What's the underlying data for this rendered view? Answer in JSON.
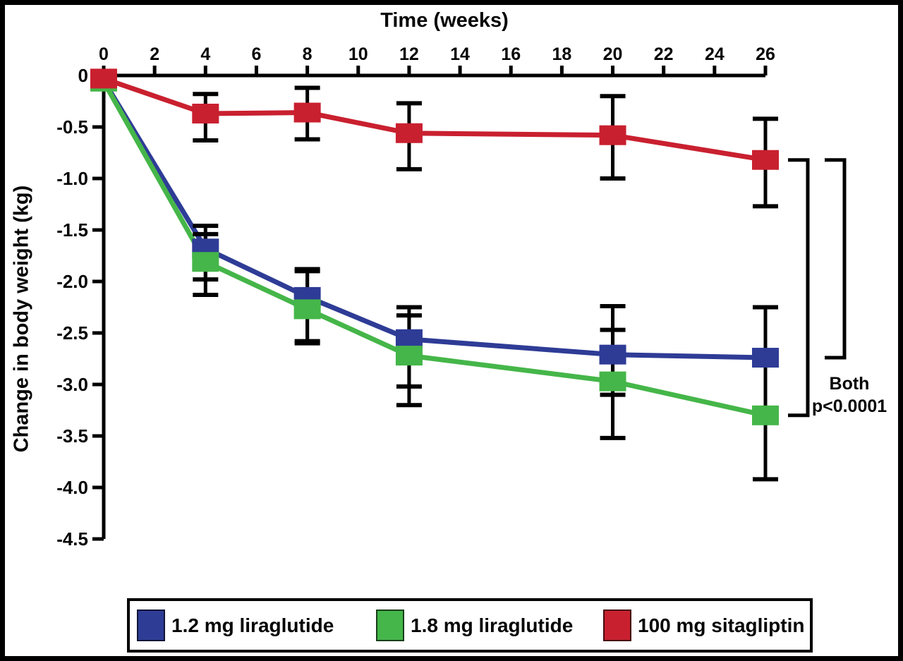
{
  "figure": {
    "xaxis_title": "Time (weeks)",
    "yaxis_title": "Change in body weight (kg)",
    "annotation_line1": "Both",
    "annotation_line2": "p<0.0001"
  },
  "legend": {
    "items": [
      {
        "label": "1.2 mg liraglutide",
        "color": "#2e3c96"
      },
      {
        "label": "1.8 mg liraglutide",
        "color": "#45b649"
      },
      {
        "label": "100 mg sitagliptin",
        "color": "#c9202f"
      }
    ]
  },
  "chart_data": {
    "type": "line",
    "title": "",
    "xlabel": "Time (weeks)",
    "ylabel": "Change in body weight (kg)",
    "xlim": [
      0,
      26
    ],
    "ylim": [
      -4.5,
      0
    ],
    "grid": false,
    "legend_position": "bottom",
    "x_ticks": [
      0,
      2,
      4,
      6,
      8,
      10,
      12,
      14,
      16,
      18,
      20,
      22,
      24,
      26
    ],
    "y_ticks": [
      0,
      -0.5,
      -1.0,
      -1.5,
      -2.0,
      -2.5,
      -3.0,
      -3.5,
      -4.0,
      -4.5
    ],
    "y_tick_labels": [
      "0",
      "-0.5",
      "-1.0",
      "-1.5",
      "-2.0",
      "-2.5",
      "-3.0",
      "-3.5",
      "-4.0",
      "-4.5"
    ],
    "x": [
      0,
      4,
      8,
      12,
      20,
      26
    ],
    "series": [
      {
        "name": "1.2 mg liraglutide",
        "color": "#2e3c96",
        "marker": "square",
        "values": [
          -0.05,
          -1.68,
          -2.15,
          -2.56,
          -2.71,
          -2.74
        ],
        "err_hi": [
          null,
          -1.46,
          -1.88,
          -2.25,
          -2.24,
          -2.25
        ],
        "err_lo": [
          null,
          -1.98,
          -2.58,
          -3.02,
          -3.1,
          -3.3
        ]
      },
      {
        "name": "1.8 mg liraglutide",
        "color": "#45b649",
        "marker": "square",
        "values": [
          -0.06,
          -1.81,
          -2.27,
          -2.72,
          -2.97,
          -3.3
        ],
        "err_hi": [
          null,
          -1.54,
          -1.9,
          -2.33,
          -2.47,
          -2.74
        ],
        "err_lo": [
          null,
          -2.13,
          -2.6,
          -3.2,
          -3.52,
          -3.92
        ]
      },
      {
        "name": "100 mg sitagliptin",
        "color": "#c9202f",
        "marker": "square",
        "values": [
          -0.03,
          -0.37,
          -0.36,
          -0.56,
          -0.58,
          -0.82
        ],
        "err_hi": [
          null,
          -0.18,
          -0.12,
          -0.27,
          -0.2,
          -0.42
        ],
        "err_lo": [
          null,
          -0.63,
          -0.62,
          -0.91,
          -1.0,
          -1.27
        ]
      }
    ],
    "annotation": {
      "text": [
        "Both",
        "p<0.0001"
      ],
      "brackets": [
        {
          "compares": [
            "100 mg sitagliptin",
            "1.8 mg liraglutide"
          ],
          "top_value": -0.82,
          "bottom_value": -3.3
        },
        {
          "compares": [
            "100 mg sitagliptin",
            "1.2 mg liraglutide"
          ],
          "top_value": -0.82,
          "bottom_value": -2.74
        }
      ]
    }
  }
}
